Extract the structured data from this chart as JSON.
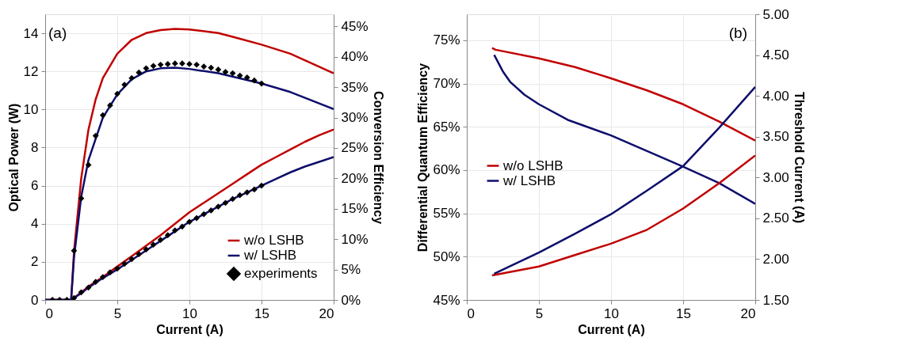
{
  "chart_data": [
    {
      "type": "line",
      "xlabel": "Current (A)",
      "ylabel": "Optical Power (W)",
      "y2label": "Conversion Efficiency",
      "annotations": [
        "(a)"
      ],
      "xlim": [
        0,
        20
      ],
      "xticks": [
        0,
        5,
        10,
        15,
        20
      ],
      "ylim": [
        0,
        15
      ],
      "yticks": [
        0,
        2,
        4,
        6,
        8,
        10,
        12,
        14
      ],
      "y2lim": [
        0,
        47
      ],
      "y2ticks": [
        {
          "value": 0,
          "label": "0%"
        },
        {
          "value": 5,
          "label": "5%"
        },
        {
          "value": 10,
          "label": "10%"
        },
        {
          "value": 15,
          "label": "15%"
        },
        {
          "value": 20,
          "label": "20%"
        },
        {
          "value": 25,
          "label": "25%"
        },
        {
          "value": 30,
          "label": "30%"
        },
        {
          "value": 35,
          "label": "35%"
        },
        {
          "value": 40,
          "label": "40%"
        },
        {
          "value": 45,
          "label": "45%"
        }
      ],
      "grid": true,
      "legend": "bottom right",
      "series": [
        {
          "name": "w/o LSHB",
          "color": "#c00000",
          "axis": "y",
          "x": [
            0,
            1.8,
            2.5,
            3,
            4,
            5,
            6,
            7,
            8,
            9,
            10,
            11,
            12,
            13,
            14,
            15,
            16,
            17,
            18,
            19,
            20
          ],
          "values": [
            0,
            0,
            0.4,
            0.7,
            1.2,
            1.75,
            2.3,
            2.85,
            3.4,
            4.0,
            4.6,
            5.1,
            5.6,
            6.1,
            6.6,
            7.1,
            7.5,
            7.9,
            8.3,
            8.65,
            8.95
          ]
        },
        {
          "name": "w/ LSHB",
          "color": "#0d0d6b",
          "axis": "y",
          "x": [
            0,
            1.8,
            2.5,
            3,
            4,
            5,
            6,
            7,
            8,
            9,
            10,
            11,
            12,
            13,
            14,
            15,
            16,
            17,
            18,
            19,
            20
          ],
          "values": [
            0,
            0,
            0.35,
            0.65,
            1.15,
            1.6,
            2.1,
            2.6,
            3.1,
            3.6,
            4.1,
            4.5,
            4.9,
            5.3,
            5.65,
            6.0,
            6.35,
            6.7,
            7.0,
            7.25,
            7.5
          ]
        },
        {
          "name": "w/o LSHB",
          "color": "#c00000",
          "axis": "y2",
          "x": [
            0,
            1.8,
            2,
            2.5,
            3,
            3.5,
            4,
            5,
            6,
            7,
            8,
            9,
            10,
            12,
            13,
            15,
            17,
            20
          ],
          "values": [
            0,
            0,
            8,
            20,
            28,
            33,
            36.5,
            40.5,
            42.8,
            43.9,
            44.4,
            44.6,
            44.5,
            43.9,
            43.3,
            42.0,
            40.5,
            37.3
          ]
        },
        {
          "name": "w/ LSHB",
          "color": "#0d0d6b",
          "axis": "y2",
          "x": [
            0,
            1.8,
            2,
            2.5,
            3,
            4,
            5,
            6,
            7,
            8,
            9,
            10,
            12,
            15,
            17,
            20
          ],
          "values": [
            0,
            0,
            7,
            17,
            23,
            30,
            33.8,
            36.3,
            37.6,
            38.1,
            38.2,
            38.0,
            37.3,
            35.6,
            34.2,
            31.4
          ]
        },
        {
          "name": "experiments",
          "type": "scatter",
          "marker": "diamond",
          "color": "#000000",
          "axis": "y",
          "x": [
            0.5,
            1,
            1.5,
            2,
            2.5,
            3,
            3.5,
            4,
            4.5,
            5,
            5.5,
            6,
            6.5,
            7,
            7.5,
            8,
            8.5,
            9,
            9.5,
            10,
            10.5,
            11,
            11.5,
            12,
            12.5,
            13,
            13.5,
            14,
            14.5,
            15
          ],
          "values": [
            0,
            0,
            0,
            0.1,
            0.4,
            0.65,
            0.95,
            1.2,
            1.45,
            1.65,
            1.9,
            2.15,
            2.4,
            2.65,
            2.9,
            3.15,
            3.4,
            3.65,
            3.85,
            4.1,
            4.3,
            4.5,
            4.7,
            4.9,
            5.1,
            5.3,
            5.5,
            5.65,
            5.8,
            6.0
          ]
        },
        {
          "type": "scatter",
          "marker": "diamond",
          "color": "#000000",
          "axis": "y2",
          "x": [
            0.5,
            1,
            1.5,
            2,
            2.5,
            3,
            3.5,
            4,
            4.5,
            5,
            5.5,
            6,
            6.5,
            7,
            7.5,
            8,
            8.5,
            9,
            9.5,
            10,
            10.5,
            11,
            11.5,
            12,
            12.5,
            13,
            13.5,
            14,
            14.5,
            15
          ],
          "values": [
            0,
            0,
            0,
            8.1,
            16.7,
            22.2,
            27.0,
            30.4,
            32.0,
            33.9,
            35.4,
            36.5,
            37.4,
            38.1,
            38.5,
            38.7,
            38.8,
            38.9,
            38.9,
            38.8,
            38.7,
            38.4,
            38.2,
            37.9,
            37.5,
            37.3,
            36.9,
            36.6,
            36.1,
            35.6
          ]
        }
      ]
    },
    {
      "type": "line",
      "xlabel": "Current (A)",
      "ylabel": "Differential Quantum Efficiency",
      "y2label": "Threshold Current (A)",
      "annotations": [
        "(b)"
      ],
      "xlim": [
        0,
        20
      ],
      "xticks": [
        0,
        5,
        10,
        15,
        20
      ],
      "ylim": [
        45,
        78
      ],
      "yticks": [
        {
          "value": 45,
          "label": "45%"
        },
        {
          "value": 50,
          "label": "50%"
        },
        {
          "value": 55,
          "label": "55%"
        },
        {
          "value": 60,
          "label": "60%"
        },
        {
          "value": 65,
          "label": "65%"
        },
        {
          "value": 70,
          "label": "70%"
        },
        {
          "value": 75,
          "label": "75%"
        }
      ],
      "y2lim": [
        1.5,
        5
      ],
      "y2ticks": [
        {
          "value": 1.5,
          "label": "1.50"
        },
        {
          "value": 2,
          "label": "2.00"
        },
        {
          "value": 2.5,
          "label": "2.50"
        },
        {
          "value": 3,
          "label": "3.00"
        },
        {
          "value": 3.5,
          "label": "3.50"
        },
        {
          "value": 4,
          "label": "4.00"
        },
        {
          "value": 4.5,
          "label": "4.50"
        },
        {
          "value": 5,
          "label": "5.00"
        }
      ],
      "grid": true,
      "legend": "left",
      "series": [
        {
          "name": "w/o LSHB",
          "color": "#c00000",
          "axis": "y",
          "x": [
            1.75,
            2,
            5,
            7.5,
            10,
            12.5,
            15,
            17.5,
            20
          ],
          "values": [
            74.1,
            73.9,
            72.9,
            71.9,
            70.6,
            69.2,
            67.6,
            65.6,
            63.4
          ]
        },
        {
          "name": "w/ LSHB",
          "color": "#0d0d6b",
          "axis": "y",
          "x": [
            1.9,
            2.5,
            3,
            4,
            5,
            7,
            10,
            12.5,
            15,
            17.5,
            20
          ],
          "values": [
            73.3,
            71.4,
            70.2,
            68.7,
            67.6,
            65.8,
            64.0,
            62.2,
            60.4,
            58.5,
            56.1
          ]
        },
        {
          "name": "w/o LSHB",
          "color": "#c00000",
          "axis": "y2",
          "x": [
            1.75,
            5,
            7.5,
            10,
            12.5,
            15,
            17.5,
            20
          ],
          "values": [
            1.8,
            1.91,
            2.05,
            2.19,
            2.36,
            2.62,
            2.93,
            3.27
          ]
        },
        {
          "name": "w/ LSHB",
          "color": "#0d0d6b",
          "axis": "y2",
          "x": [
            1.9,
            5,
            7.5,
            10,
            12.5,
            15,
            17.5,
            20
          ],
          "values": [
            1.82,
            2.08,
            2.31,
            2.55,
            2.84,
            3.14,
            3.61,
            4.11
          ]
        }
      ]
    }
  ]
}
